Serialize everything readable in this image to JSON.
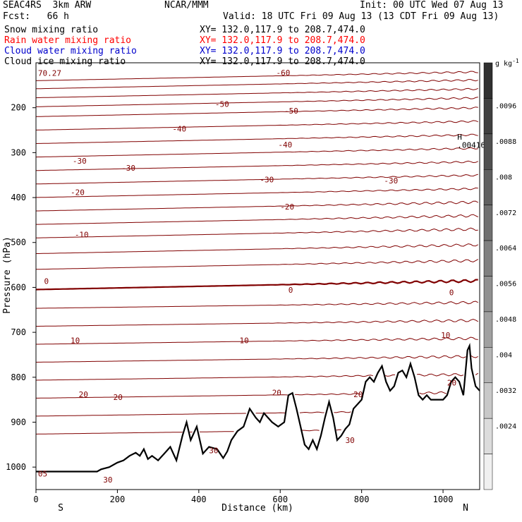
{
  "header": {
    "model": "SEAC4RS  3km ARW",
    "center": "NCAR/MMM",
    "init": "Init: 00 UTC Wed 07 Aug 13",
    "fcst": "Fcst:   66 h",
    "valid": "Valid: 18 UTC Fri 09 Aug 13 (13 CDT Fri 09 Aug 13)"
  },
  "fields": [
    {
      "label": "Snow mixing ratio",
      "xy": "XY= 132.0,117.9 to 208.7,474.0",
      "color": "#000000"
    },
    {
      "label": "Rain water mixing ratio",
      "xy": "XY= 132.0,117.9 to 208.7,474.0",
      "color": "#ff0000"
    },
    {
      "label": "Cloud water mixing ratio",
      "xy": "XY= 132.0,117.9 to 208.7,474.0",
      "color": "#0000cc"
    },
    {
      "label": "Cloud ice mixing ratio",
      "xy": "XY= 132.0,117.9 to 208.7,474.0",
      "color": "#000000"
    }
  ],
  "chart_data": {
    "type": "line",
    "xlabel": "Distance (km)",
    "ylabel": "Pressure (hPa)",
    "xlim": [
      0,
      1090
    ],
    "ylim": [
      1050,
      100
    ],
    "xticks": [
      0,
      200,
      400,
      600,
      800,
      1000
    ],
    "yticks": [
      200,
      300,
      400,
      500,
      600,
      700,
      800,
      900,
      1000
    ],
    "direction_left": "S",
    "direction_right": "N",
    "isotherm_color": "#800000",
    "isotherms": [
      {
        "p": 130,
        "label": "-60"
      },
      {
        "p": 148,
        "label": ""
      },
      {
        "p": 168,
        "label": ""
      },
      {
        "p": 188,
        "label": "-50"
      },
      {
        "p": 210,
        "label": ""
      },
      {
        "p": 240,
        "label": "-40"
      },
      {
        "p": 270,
        "label": ""
      },
      {
        "p": 300,
        "label": "-30"
      },
      {
        "p": 330,
        "label": ""
      },
      {
        "p": 360,
        "label": "-20"
      },
      {
        "p": 390,
        "label": ""
      },
      {
        "p": 420,
        "label": ""
      },
      {
        "p": 450,
        "label": "-10"
      },
      {
        "p": 480,
        "label": ""
      },
      {
        "p": 515,
        "label": ""
      },
      {
        "p": 550,
        "label": ""
      },
      {
        "p": 595,
        "label": "0"
      },
      {
        "p": 640,
        "label": ""
      },
      {
        "p": 680,
        "label": ""
      },
      {
        "p": 720,
        "label": "10"
      },
      {
        "p": 760,
        "label": ""
      },
      {
        "p": 800,
        "label": ""
      },
      {
        "p": 840,
        "label": "20"
      },
      {
        "p": 880,
        "label": ""
      },
      {
        "p": 920,
        "label": "30"
      }
    ],
    "labels": [
      {
        "x": 590,
        "p": 122,
        "text": "-60"
      },
      {
        "x": 440,
        "p": 192,
        "text": "-50"
      },
      {
        "x": 610,
        "p": 207,
        "text": "-50"
      },
      {
        "x": 335,
        "p": 247,
        "text": "-40"
      },
      {
        "x": 595,
        "p": 282,
        "text": "-40"
      },
      {
        "x": 90,
        "p": 318,
        "text": "-30"
      },
      {
        "x": 210,
        "p": 334,
        "text": "-30"
      },
      {
        "x": 550,
        "p": 360,
        "text": "-30"
      },
      {
        "x": 855,
        "p": 362,
        "text": "-30"
      },
      {
        "x": 85,
        "p": 388,
        "text": "-20"
      },
      {
        "x": 600,
        "p": 420,
        "text": "-20"
      },
      {
        "x": 95,
        "p": 482,
        "text": "-10"
      },
      {
        "x": 20,
        "p": 586,
        "text": "0"
      },
      {
        "x": 620,
        "p": 606,
        "text": "0"
      },
      {
        "x": 1015,
        "p": 611,
        "text": "0"
      },
      {
        "x": 85,
        "p": 718,
        "text": "10"
      },
      {
        "x": 500,
        "p": 718,
        "text": "10"
      },
      {
        "x": 995,
        "p": 706,
        "text": "10"
      },
      {
        "x": 105,
        "p": 838,
        "text": "20"
      },
      {
        "x": 190,
        "p": 844,
        "text": "20"
      },
      {
        "x": 580,
        "p": 834,
        "text": "20"
      },
      {
        "x": 780,
        "p": 838,
        "text": "20"
      },
      {
        "x": 1010,
        "p": 812,
        "text": "20"
      },
      {
        "x": 425,
        "p": 963,
        "text": "30"
      },
      {
        "x": 760,
        "p": 940,
        "text": "30"
      },
      {
        "x": 165,
        "p": 1028,
        "text": "30"
      },
      {
        "x": 5,
        "p": 1015,
        "text": "05"
      },
      {
        "x": 5,
        "p": 123,
        "text": "70.27"
      },
      {
        "x": 1035,
        "p": 283,
        "text": ".00416"
      },
      {
        "x": 1035,
        "p": 265,
        "text": "H"
      }
    ],
    "terrain": {
      "x": [
        0,
        150,
        160,
        180,
        200,
        215,
        230,
        245,
        255,
        265,
        275,
        285,
        300,
        315,
        330,
        345,
        360,
        370,
        380,
        395,
        410,
        425,
        445,
        460,
        470,
        480,
        495,
        510,
        525,
        540,
        550,
        560,
        570,
        580,
        595,
        610,
        620,
        630,
        640,
        650,
        660,
        670,
        680,
        690,
        700,
        710,
        720,
        730,
        740,
        750,
        760,
        770,
        780,
        790,
        800,
        810,
        820,
        830,
        840,
        850,
        860,
        870,
        880,
        890,
        900,
        910,
        920,
        930,
        940,
        950,
        960,
        970,
        980,
        990,
        1000,
        1010,
        1020,
        1030,
        1040,
        1050,
        1060,
        1065,
        1070,
        1080,
        1090
      ],
      "p": [
        1010,
        1010,
        1005,
        1000,
        990,
        985,
        975,
        968,
        975,
        960,
        982,
        975,
        985,
        970,
        955,
        985,
        930,
        900,
        940,
        910,
        970,
        955,
        960,
        980,
        965,
        940,
        920,
        910,
        870,
        890,
        900,
        880,
        890,
        900,
        910,
        900,
        840,
        835,
        870,
        910,
        950,
        960,
        940,
        960,
        930,
        890,
        855,
        890,
        940,
        930,
        915,
        905,
        870,
        860,
        850,
        810,
        800,
        810,
        790,
        775,
        810,
        830,
        820,
        790,
        785,
        800,
        770,
        800,
        840,
        850,
        840,
        850,
        850,
        850,
        850,
        840,
        810,
        800,
        810,
        840,
        740,
        730,
        780,
        820,
        830
      ]
    },
    "colorbar": {
      "unit": "g kg",
      "ticks": [
        ".0096",
        ".0088",
        ".008",
        ".0072",
        ".0064",
        ".0056",
        ".0048",
        ".004",
        ".0032",
        ".0024"
      ],
      "shades": [
        "#303030",
        "#404040",
        "#505050",
        "#606060",
        "#707070",
        "#808080",
        "#909090",
        "#a0a0a0",
        "#b4b4b4",
        "#c8c8c8",
        "#dcdcdc",
        "#f0f0f0"
      ]
    }
  }
}
